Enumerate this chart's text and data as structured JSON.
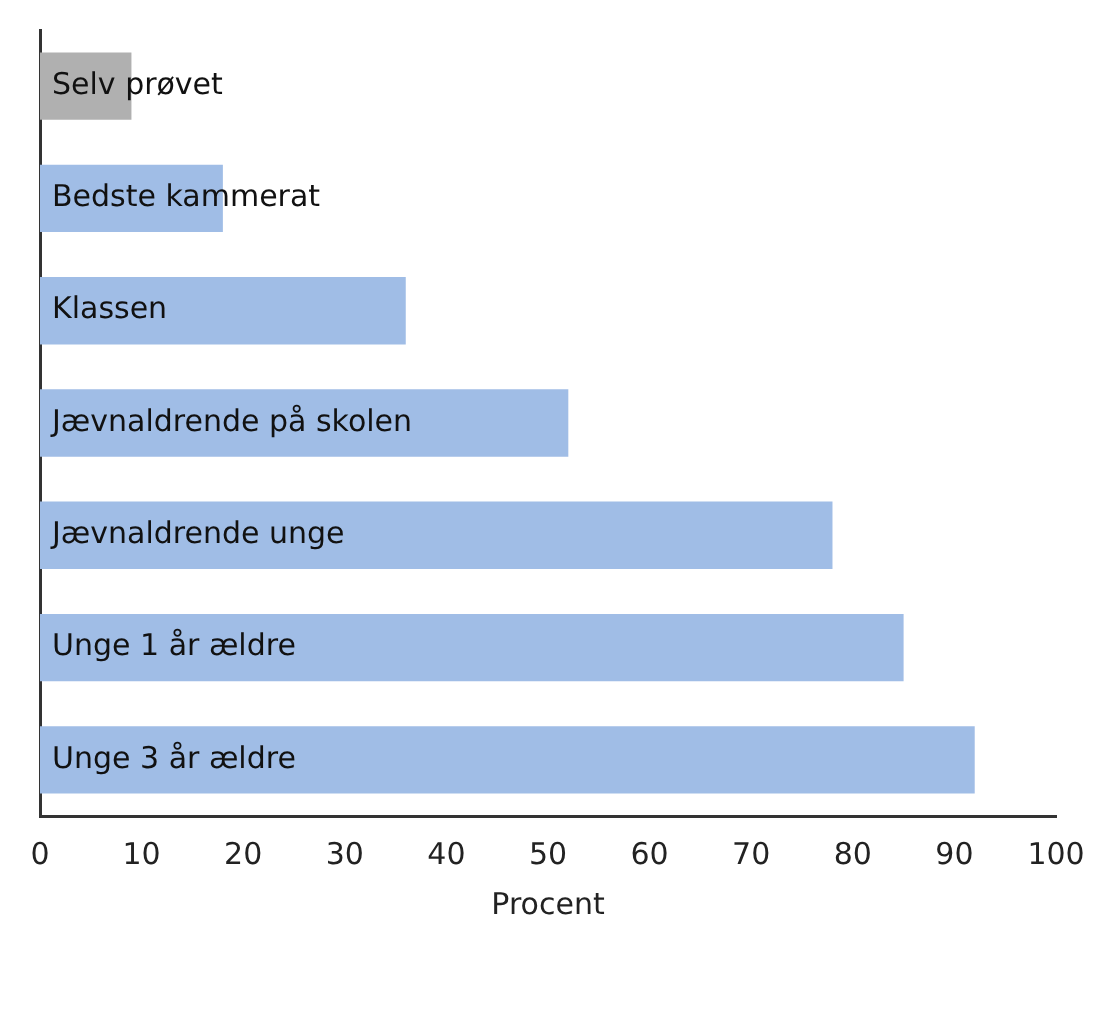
{
  "chart_data": {
    "type": "bar",
    "orientation": "horizontal",
    "xlabel": "Procent",
    "categories": [
      "Selv prøvet",
      "Bedste kammerat",
      "Klassen",
      "Jævnaldrende på skolen",
      "Jævnaldrende unge",
      "Unge 1 år ældre",
      "Unge 3 år ældre"
    ],
    "values": [
      9,
      18,
      36,
      52,
      78,
      85,
      92
    ],
    "colors": [
      "#b0b0b0",
      "#a0bde6",
      "#a0bde6",
      "#a0bde6",
      "#a0bde6",
      "#a0bde6",
      "#a0bde6"
    ],
    "xlim": [
      0,
      100
    ],
    "xticks": [
      0,
      10,
      20,
      30,
      40,
      50,
      60,
      70,
      80,
      90,
      100
    ],
    "grid": false,
    "legend": false
  }
}
